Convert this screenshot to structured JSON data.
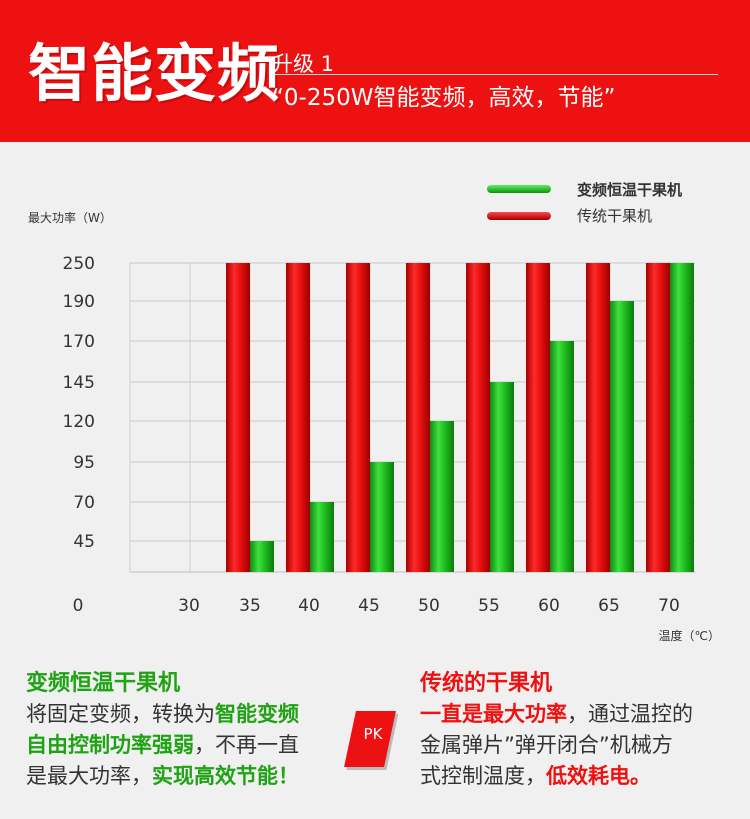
{
  "header": {
    "title": "智能变频",
    "upgrade_label": "升级 1",
    "slogan": "“0-250W智能变频，高效，节能”"
  },
  "colors": {
    "brand_red": "#ee1111",
    "accent_green": "#1fa314",
    "background": "#f0f0f0"
  },
  "chart_data": {
    "type": "bar",
    "ylabel": "最大功率（W）",
    "xlabel": "温度（℃）",
    "y_ticks": [
      "250",
      "190",
      "170",
      "145",
      "120",
      "95",
      "70",
      "45"
    ],
    "x_ticks": [
      "0",
      "30",
      "35",
      "40",
      "45",
      "50",
      "55",
      "60",
      "65",
      "70"
    ],
    "categories": [
      "35",
      "40",
      "45",
      "50",
      "55",
      "60",
      "65",
      "70"
    ],
    "series": [
      {
        "name": "变频恒温干果机",
        "color": "#22bb22",
        "values": [
          45,
          70,
          95,
          120,
          145,
          170,
          190,
          250
        ]
      },
      {
        "name": "传统干果机",
        "color": "#dd1111",
        "values": [
          250,
          250,
          250,
          250,
          250,
          250,
          250,
          250
        ]
      }
    ],
    "legend": "top-right",
    "grid": true
  },
  "left_block": {
    "title": "变频恒温干果机",
    "line1_a": "将固定变频，转换为",
    "line1_b": "智能变频",
    "line2_a": "自由控制功率强弱",
    "line2_b": "，不再一直",
    "line3_a": "是最大功率，",
    "line3_b": "实现高效节能！"
  },
  "pk_badge": "PK",
  "right_block": {
    "title": "传统的干果机",
    "line1_a": "一直是最大功率",
    "line1_b": "，通过温控的",
    "line2": "金属弹片”弹开闭合”机械方",
    "line3_a": "式控制温度，",
    "line3_b": "低效耗电。"
  }
}
